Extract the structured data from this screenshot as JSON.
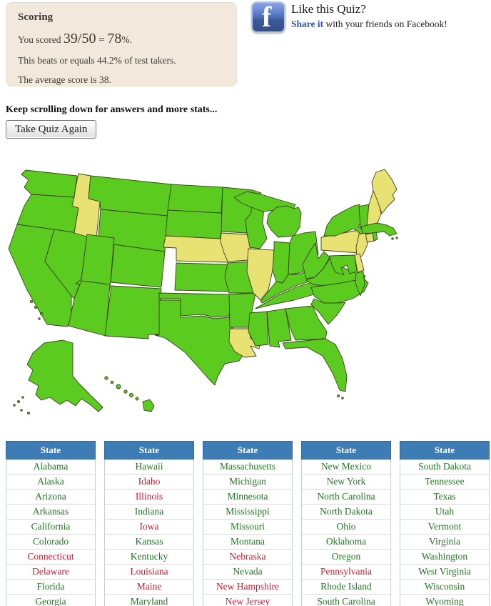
{
  "scoring": {
    "title": "Scoring",
    "you_scored_prefix": "You scored ",
    "score_fraction": "39/50",
    "equals_sign": " = ",
    "score_percent": "78",
    "percent_suffix": "%.",
    "beats_line": "This beats or equals 44.2% of test takers.",
    "average_line": "The average score is 38."
  },
  "facebook": {
    "icon": "facebook-f-icon",
    "title": "Like this Quiz?",
    "share_link_label": "Share it",
    "share_text_rest": " with your friends on Facebook!"
  },
  "scroll_note": "Keep scrolling down for answers and more stats...",
  "take_quiz_again_label": "Take Quiz Again",
  "map": {
    "correct_color": "#5ccb1f",
    "missed_color": "#e8e272",
    "border_color": "#3a421f"
  },
  "results_table": {
    "header": "State",
    "header_bg": "#3d7cb5",
    "correct_color": "#227722",
    "missed_color": "#cc1b31",
    "columns": [
      {
        "rows": [
          {
            "label": "Alabama",
            "status": "correct"
          },
          {
            "label": "Alaska",
            "status": "correct"
          },
          {
            "label": "Arizona",
            "status": "correct"
          },
          {
            "label": "Arkansas",
            "status": "correct"
          },
          {
            "label": "California",
            "status": "correct"
          },
          {
            "label": "Colorado",
            "status": "correct"
          },
          {
            "label": "Connecticut",
            "status": "missed"
          },
          {
            "label": "Delaware",
            "status": "missed"
          },
          {
            "label": "Florida",
            "status": "correct"
          },
          {
            "label": "Georgia",
            "status": "correct"
          }
        ]
      },
      {
        "rows": [
          {
            "label": "Hawaii",
            "status": "correct"
          },
          {
            "label": "Idaho",
            "status": "missed"
          },
          {
            "label": "Illinois",
            "status": "missed"
          },
          {
            "label": "Indiana",
            "status": "correct"
          },
          {
            "label": "Iowa",
            "status": "missed"
          },
          {
            "label": "Kansas",
            "status": "correct"
          },
          {
            "label": "Kentucky",
            "status": "correct"
          },
          {
            "label": "Louisiana",
            "status": "missed"
          },
          {
            "label": "Maine",
            "status": "missed"
          },
          {
            "label": "Maryland",
            "status": "correct"
          }
        ]
      },
      {
        "rows": [
          {
            "label": "Massachusetts",
            "status": "correct"
          },
          {
            "label": "Michigan",
            "status": "correct"
          },
          {
            "label": "Minnesota",
            "status": "correct"
          },
          {
            "label": "Mississippi",
            "status": "correct"
          },
          {
            "label": "Missouri",
            "status": "correct"
          },
          {
            "label": "Montana",
            "status": "correct"
          },
          {
            "label": "Nebraska",
            "status": "missed"
          },
          {
            "label": "Nevada",
            "status": "correct"
          },
          {
            "label": "New Hampshire",
            "status": "missed"
          },
          {
            "label": "New Jersey",
            "status": "missed"
          }
        ]
      },
      {
        "rows": [
          {
            "label": "New Mexico",
            "status": "correct"
          },
          {
            "label": "New York",
            "status": "correct"
          },
          {
            "label": "North Carolina",
            "status": "correct"
          },
          {
            "label": "North Dakota",
            "status": "correct"
          },
          {
            "label": "Ohio",
            "status": "correct"
          },
          {
            "label": "Oklahoma",
            "status": "correct"
          },
          {
            "label": "Oregon",
            "status": "correct"
          },
          {
            "label": "Pennsylvania",
            "status": "missed"
          },
          {
            "label": "Rhode Island",
            "status": "correct"
          },
          {
            "label": "South Carolina",
            "status": "correct"
          }
        ]
      },
      {
        "rows": [
          {
            "label": "South Dakota",
            "status": "correct"
          },
          {
            "label": "Tennessee",
            "status": "correct"
          },
          {
            "label": "Texas",
            "status": "correct"
          },
          {
            "label": "Utah",
            "status": "correct"
          },
          {
            "label": "Vermont",
            "status": "correct"
          },
          {
            "label": "Virginia",
            "status": "correct"
          },
          {
            "label": "Washington",
            "status": "correct"
          },
          {
            "label": "West Virginia",
            "status": "correct"
          },
          {
            "label": "Wisconsin",
            "status": "correct"
          },
          {
            "label": "Wyoming",
            "status": "correct"
          }
        ]
      }
    ]
  }
}
